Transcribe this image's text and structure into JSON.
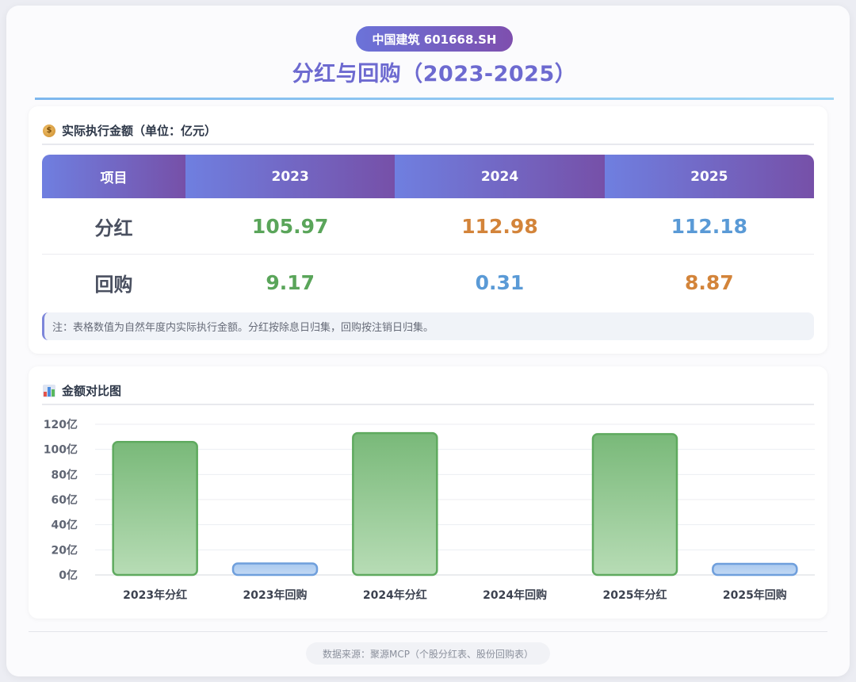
{
  "header": {
    "badge": "中国建筑 601668.SH",
    "title": "分红与回购（2023-2025）"
  },
  "table_section": {
    "heading": "实际执行金额（单位：亿元）",
    "columns": [
      "项目",
      "2023",
      "2024",
      "2025"
    ],
    "rows": [
      {
        "label": "分红",
        "values": [
          "105.97",
          "112.98",
          "112.18"
        ],
        "colors": [
          "#5aa55a",
          "#d3843a",
          "#5a9ad6"
        ]
      },
      {
        "label": "回购",
        "values": [
          "9.17",
          "0.31",
          "8.87"
        ],
        "colors": [
          "#5aa55a",
          "#5a9ad6",
          "#d3843a"
        ]
      }
    ],
    "note": "注：表格数值为自然年度内实际执行金额。分红按除息日归集，回购按注销日归集。"
  },
  "chart_section": {
    "heading": "金额对比图"
  },
  "chart_data": {
    "type": "bar",
    "categories": [
      "2023年分红",
      "2023年回购",
      "2024年分红",
      "2024年回购",
      "2025年分红",
      "2025年回购"
    ],
    "values": [
      105.97,
      9.17,
      112.98,
      0.31,
      112.18,
      8.87
    ],
    "bar_kinds": [
      "分红",
      "回购",
      "分红",
      "回购",
      "分红",
      "回购"
    ],
    "colors": {
      "分红": "#6aaf6a",
      "回购": "#6f9fdc"
    },
    "y_ticks": [
      "0亿",
      "20亿",
      "40亿",
      "60亿",
      "80亿",
      "100亿",
      "120亿"
    ],
    "ylim": [
      0,
      120
    ],
    "grid": true,
    "title": "",
    "xlabel": "",
    "ylabel": ""
  },
  "footer": {
    "source": "数据来源：聚源MCP（个股分红表、股份回购表）"
  }
}
